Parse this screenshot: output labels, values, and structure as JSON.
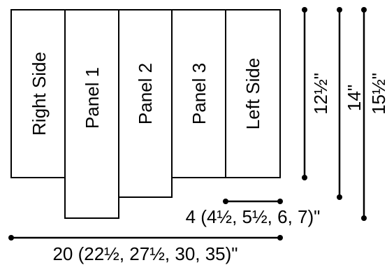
{
  "panels": [
    {
      "id": "right-side",
      "label": "Right Side"
    },
    {
      "id": "panel-1",
      "label": "Panel 1"
    },
    {
      "id": "panel-2",
      "label": "Panel 2"
    },
    {
      "id": "panel-3",
      "label": "Panel 3"
    },
    {
      "id": "left-side",
      "label": "Left Side"
    }
  ],
  "dimensions": {
    "height_short": "12½\"",
    "height_mid": "14\"",
    "height_tall": "15½\"",
    "panel_width": "4 (4½, 5½, 6, 7)\"",
    "total_width": "20 (22½, 27½, 30, 35)\""
  },
  "colors": {
    "stroke": "#000000",
    "fill": "#ffffff"
  }
}
